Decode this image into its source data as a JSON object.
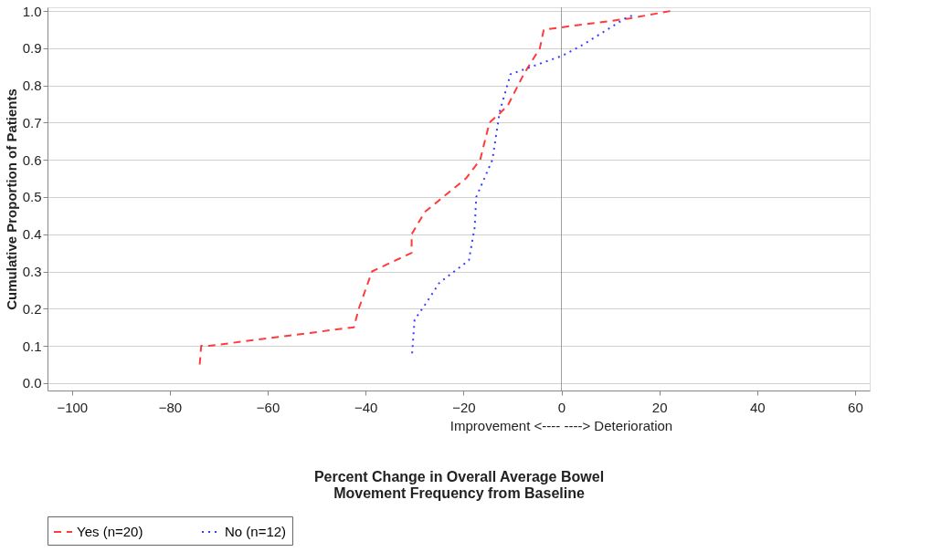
{
  "chart_data": {
    "type": "line",
    "ylabel": "Cumulative Proportion of Patients",
    "xlabel": "Percent Change in Overall Average Bowel\nMovement Frequency from Baseline",
    "annotations": [
      "Improvement     <----   ---->     Deterioration"
    ],
    "xlim": [
      -105,
      63
    ],
    "xticks": [
      -100,
      -80,
      -60,
      -40,
      -20,
      0,
      20,
      40,
      60
    ],
    "ylim": [
      -0.02,
      1.01
    ],
    "yticks": [
      {
        "value": 0,
        "label": "0.0"
      },
      0.1,
      0.2,
      0.3,
      0.4,
      0.5,
      0.6,
      0.7,
      0.8,
      0.9,
      {
        "value": 1,
        "label": "1.0"
      }
    ],
    "grid": "y",
    "legend": "bottom",
    "ref_lines": [
      {
        "axis": "x",
        "value": 0,
        "color": "#a0a0a0"
      }
    ],
    "series": [
      {
        "name": "Yes (n=20)",
        "color": "#ff3b3b",
        "line_style": "dashed",
        "x": [
          -73.9,
          -73.6,
          -72,
          -42.4,
          -41.4,
          -38.7,
          -30.6,
          -30.6,
          -27.9,
          -19.5,
          -16.6,
          -14.7,
          -12.6,
          -11,
          -7.7,
          -4.4,
          -3.6,
          13.9,
          22.3
        ],
        "values": [
          0.05,
          0.1,
          0.1,
          0.15,
          0.2,
          0.3,
          0.35,
          0.4,
          0.46,
          0.55,
          0.6,
          0.7,
          0.725,
          0.745,
          0.83,
          0.9,
          0.95,
          0.98,
          1.0
        ]
      },
      {
        "name": "No (n=12)",
        "color": "#3b3bff",
        "line_style": "dotted",
        "x": [
          -30.5,
          -30,
          -27.9,
          -24.9,
          -18.9,
          -17.7,
          -17.4,
          -14.1,
          -12.6,
          -10.4,
          -8.3,
          0.2,
          4.5,
          13,
          14.8
        ],
        "values": [
          0.08,
          0.17,
          0.21,
          0.27,
          0.33,
          0.42,
          0.5,
          0.6,
          0.73,
          0.83,
          0.84,
          0.88,
          0.91,
          0.98,
          0.99
        ]
      }
    ]
  }
}
